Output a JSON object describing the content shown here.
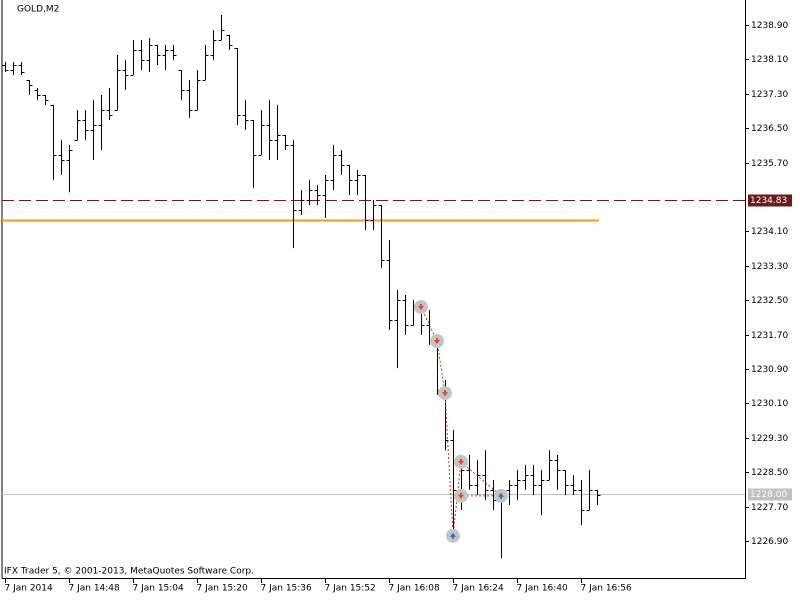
{
  "chart_data": {
    "type": "ohlc",
    "title": "GOLD,M2",
    "footer": "IFX Trader 5, © 2001-2013, MetaQuotes Software Corp.",
    "color": "#000000",
    "xlim": [
      -0.625,
      92.5
    ],
    "ylim": [
      1226.04,
      1239.48
    ],
    "xticks": [
      {
        "value": 0,
        "label": "7 Jan 2014"
      },
      {
        "value": 8,
        "label": "7 Jan 14:48"
      },
      {
        "value": 16,
        "label": "7 Jan 15:04"
      },
      {
        "value": 24,
        "label": "7 Jan 15:20"
      },
      {
        "value": 32,
        "label": "7 Jan 15:36"
      },
      {
        "value": 40,
        "label": "7 Jan 15:52"
      },
      {
        "value": 48,
        "label": "7 Jan 16:08"
      },
      {
        "value": 56,
        "label": "7 Jan 16:24"
      },
      {
        "value": 64,
        "label": "7 Jan 16:40"
      },
      {
        "value": 72,
        "label": "7 Jan 16:56"
      }
    ],
    "yticks": [
      {
        "value": 1238.9,
        "label": "1238.90"
      },
      {
        "value": 1238.1,
        "label": "1238.10"
      },
      {
        "value": 1237.3,
        "label": "1237.30"
      },
      {
        "value": 1236.5,
        "label": "1236.50"
      },
      {
        "value": 1235.7,
        "label": "1235.70"
      },
      {
        "value": 1234.1,
        "label": "1234.10"
      },
      {
        "value": 1233.3,
        "label": "1233.30"
      },
      {
        "value": 1232.5,
        "label": "1232.50"
      },
      {
        "value": 1231.7,
        "label": "1231.70"
      },
      {
        "value": 1230.9,
        "label": "1230.90"
      },
      {
        "value": 1230.1,
        "label": "1230.10"
      },
      {
        "value": 1229.3,
        "label": "1229.30"
      },
      {
        "value": 1228.5,
        "label": "1228.50"
      },
      {
        "value": 1227.7,
        "label": "1227.70"
      },
      {
        "value": 1226.9,
        "label": "1226.90"
      }
    ],
    "ohlc": [
      [
        1237.97,
        1238.04,
        1237.81,
        1237.85
      ],
      [
        1237.85,
        1238.04,
        1237.74,
        1237.97
      ],
      [
        1237.97,
        1238.04,
        1237.74,
        1237.81
      ],
      [
        1237.62,
        1237.62,
        1237.27,
        1237.5
      ],
      [
        1237.39,
        1237.43,
        1237.15,
        1237.27
      ],
      [
        1237.27,
        1237.27,
        1237.04,
        1237.15
      ],
      [
        1237.04,
        1237.04,
        1235.3,
        1235.88
      ],
      [
        1235.88,
        1236.22,
        1235.41,
        1235.76
      ],
      [
        1235.76,
        1236.11,
        1235.01,
        1235.99
      ],
      [
        1236.22,
        1236.92,
        1236.22,
        1236.69
      ],
      [
        1236.69,
        1236.92,
        1236.22,
        1236.46
      ],
      [
        1236.46,
        1237.15,
        1235.76,
        1236.57
      ],
      [
        1236.57,
        1237.27,
        1235.99,
        1236.92
      ],
      [
        1236.92,
        1237.43,
        1236.69,
        1236.81
      ],
      [
        1236.92,
        1238.2,
        1236.92,
        1237.85
      ],
      [
        1237.85,
        1238.08,
        1237.39,
        1237.74
      ],
      [
        1237.74,
        1238.55,
        1237.74,
        1238.32
      ],
      [
        1238.32,
        1238.55,
        1237.85,
        1238.08
      ],
      [
        1238.08,
        1238.6,
        1237.81,
        1238.43
      ],
      [
        1238.43,
        1238.43,
        1237.97,
        1238.2
      ],
      [
        1238.2,
        1238.43,
        1237.85,
        1238.32
      ],
      [
        1238.32,
        1238.43,
        1238.08,
        1238.2
      ],
      [
        1237.85,
        1237.85,
        1237.15,
        1237.39
      ],
      [
        1237.39,
        1237.62,
        1236.74,
        1236.92
      ],
      [
        1236.92,
        1237.85,
        1236.92,
        1237.62
      ],
      [
        1237.62,
        1238.43,
        1237.62,
        1238.2
      ],
      [
        1238.2,
        1238.78,
        1238.08,
        1238.55
      ],
      [
        1238.55,
        1239.13,
        1238.55,
        1238.78
      ],
      [
        1238.67,
        1238.67,
        1238.32,
        1238.43
      ],
      [
        1238.36,
        1238.36,
        1236.57,
        1236.81
      ],
      [
        1236.81,
        1237.15,
        1236.46,
        1236.69
      ],
      [
        1236.69,
        1236.69,
        1235.11,
        1235.88
      ],
      [
        1235.88,
        1236.92,
        1235.88,
        1236.57
      ],
      [
        1236.57,
        1237.15,
        1235.76,
        1236.22
      ],
      [
        1236.22,
        1237.04,
        1235.76,
        1236.34
      ],
      [
        1236.34,
        1236.34,
        1235.99,
        1236.11
      ],
      [
        1236.11,
        1236.22,
        1233.71,
        1234.6
      ],
      [
        1234.6,
        1235.06,
        1234.48,
        1234.83
      ],
      [
        1234.83,
        1235.3,
        1234.71,
        1235.06
      ],
      [
        1235.06,
        1235.18,
        1234.71,
        1234.95
      ],
      [
        1234.95,
        1235.41,
        1234.41,
        1235.3
      ],
      [
        1235.3,
        1236.11,
        1235.06,
        1235.88
      ],
      [
        1235.88,
        1235.99,
        1235.41,
        1235.64
      ],
      [
        1235.64,
        1235.64,
        1234.95,
        1235.3
      ],
      [
        1235.3,
        1235.53,
        1234.95,
        1235.41
      ],
      [
        1235.41,
        1235.41,
        1234.13,
        1234.36
      ],
      [
        1234.36,
        1234.83,
        1234.13,
        1234.71
      ],
      [
        1234.71,
        1234.71,
        1233.25,
        1233.43
      ],
      [
        1233.43,
        1233.9,
        1231.81,
        1232.04
      ],
      [
        1232.04,
        1232.74,
        1230.92,
        1232.5
      ],
      [
        1232.5,
        1232.62,
        1231.69,
        1231.92
      ],
      [
        1231.92,
        1232.5,
        1231.92,
        1232.39
      ],
      [
        1232.39,
        1232.39,
        1231.69,
        1231.92
      ],
      [
        1231.92,
        1232.27,
        1231.46,
        1231.57
      ],
      [
        1231.57,
        1231.57,
        1230.3,
        1230.41
      ],
      [
        1230.41,
        1230.64,
        1229.01,
        1229.25
      ],
      [
        1229.25,
        1229.48,
        1226.92,
        1228.09
      ],
      [
        1228.09,
        1228.9,
        1227.62,
        1228.55
      ],
      [
        1228.55,
        1228.9,
        1228.09,
        1228.2
      ],
      [
        1228.2,
        1228.78,
        1227.97,
        1228.43
      ],
      [
        1228.43,
        1229.01,
        1227.85,
        1228.09
      ],
      [
        1228.09,
        1228.32,
        1227.62,
        1227.85
      ],
      [
        1227.85,
        1228.09,
        1226.5,
        1228.09
      ],
      [
        1228.09,
        1228.32,
        1227.74,
        1228.2
      ],
      [
        1228.2,
        1228.55,
        1227.85,
        1228.32
      ],
      [
        1228.32,
        1228.67,
        1228.09,
        1228.43
      ],
      [
        1228.43,
        1228.67,
        1227.97,
        1228.2
      ],
      [
        1228.2,
        1228.55,
        1227.5,
        1228.32
      ],
      [
        1228.32,
        1229.01,
        1228.32,
        1228.78
      ],
      [
        1228.78,
        1228.9,
        1228.09,
        1228.55
      ],
      [
        1228.55,
        1228.55,
        1227.97,
        1228.2
      ],
      [
        1228.2,
        1228.43,
        1227.97,
        1228.09
      ],
      [
        1228.09,
        1228.32,
        1227.27,
        1227.62
      ],
      [
        1227.62,
        1228.55,
        1227.62,
        1228.09
      ],
      [
        1228.09,
        1228.09,
        1227.74,
        1227.97
      ]
    ],
    "levels": [
      {
        "value": 1234.83,
        "color": "#6b1a1a",
        "style": "dashed"
      },
      {
        "value": 1234.36,
        "color": "#f59a1e",
        "style": "solid",
        "x_end": 74
      },
      {
        "value": 1228.0,
        "label": "1228.00",
        "color": "#c0c0c0",
        "style": "solid"
      }
    ],
    "deals": [
      {
        "x": 52,
        "price": 1232.34,
        "color": "#e2462a"
      },
      {
        "x": 54,
        "price": 1231.55,
        "color": "#e2462a"
      },
      {
        "x": 55,
        "price": 1230.34,
        "color": "#e2462a"
      },
      {
        "x": 56,
        "price": 1227.02,
        "color": "#2a6db5"
      },
      {
        "x": 57,
        "price": 1228.74,
        "color": "#e2462a"
      },
      {
        "x": 62,
        "price": 1227.95,
        "color": "#2a6db5"
      },
      {
        "x": 57,
        "price": 1227.95,
        "color": "#e2462a"
      }
    ]
  }
}
